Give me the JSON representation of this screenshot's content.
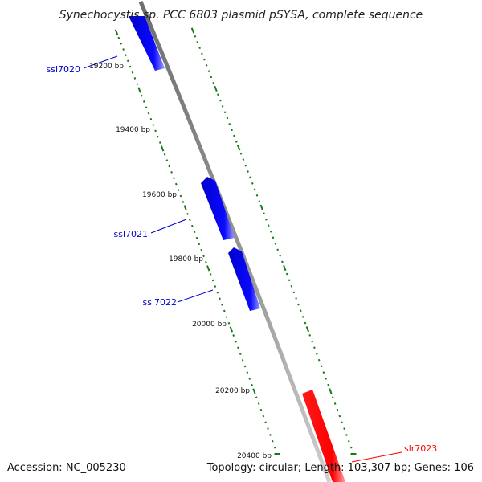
{
  "title": "Synechocystis sp. PCC 6803 plasmid pSYSA, complete sequence",
  "accession": "Accession: NC_005230",
  "topology": "Topology: circular; Length: 103,307 bp; Genes: 106",
  "colors": {
    "forward_gene": "#ff0000",
    "reverse_gene": "#0000ee",
    "backbone": "#8c8c8c",
    "ticks": "#1a7a1a"
  },
  "bp_labels": [
    "19200 bp",
    "19400 bp",
    "19600 bp",
    "19800 bp",
    "20000 bp",
    "20200 bp",
    "20400 bp"
  ],
  "genes": [
    {
      "name": "ssl7020",
      "strand": "reverse"
    },
    {
      "name": "ssl7021",
      "strand": "reverse"
    },
    {
      "name": "ssl7022",
      "strand": "reverse"
    },
    {
      "name": "slr7023",
      "strand": "forward"
    }
  ]
}
